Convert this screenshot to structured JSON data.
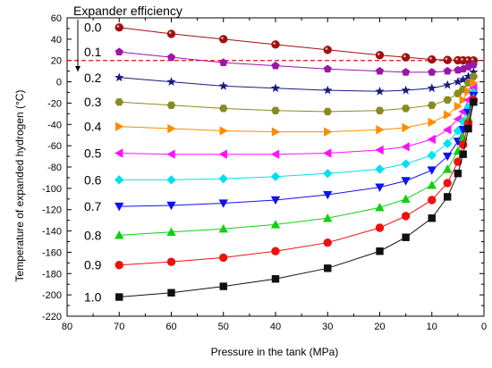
{
  "chart_data": {
    "type": "line",
    "title": "",
    "xlabel": "Pressure in the tank (MPa)",
    "ylabel": "Temperature of expanded hydrogen (°C)",
    "xlim": [
      80,
      0
    ],
    "ylim": [
      -220,
      60
    ],
    "x_ticks": [
      80,
      70,
      60,
      50,
      40,
      30,
      20,
      10,
      0
    ],
    "y_ticks": [
      60,
      40,
      20,
      0,
      -20,
      -40,
      -60,
      -80,
      -100,
      -120,
      -140,
      -160,
      -180,
      -200,
      -220
    ],
    "x_reversed": true,
    "grid": false,
    "annotation_title": "Expander efficiency",
    "reference_line": {
      "y": 20,
      "style": "dashed",
      "color": "#e01010"
    },
    "series": [
      {
        "name": "0.0",
        "marker": "sphere",
        "color": "#a01010",
        "line_color": "#a01010",
        "x": [
          70,
          60,
          50,
          40,
          30,
          20,
          15,
          10,
          7,
          5,
          4,
          3,
          2
        ],
        "y": [
          51,
          45,
          40,
          35,
          30,
          25,
          23,
          21,
          20.5,
          20.2,
          20.1,
          20,
          20
        ]
      },
      {
        "name": "0.1",
        "marker": "pentagon",
        "color": "#9b17a8",
        "line_color": "#9b17a8",
        "x": [
          70,
          60,
          50,
          40,
          30,
          20,
          15,
          10,
          7,
          5,
          4,
          3,
          2
        ],
        "y": [
          28,
          23,
          18,
          15,
          12,
          10,
          9,
          9,
          10,
          11,
          12,
          14,
          16
        ]
      },
      {
        "name": "0.2",
        "marker": "star",
        "color": "#1a1a80",
        "line_color": "#1a1a80",
        "x": [
          70,
          60,
          50,
          40,
          30,
          20,
          15,
          10,
          7,
          5,
          4,
          3,
          2
        ],
        "y": [
          4,
          0,
          -4,
          -6,
          -8,
          -9,
          -8,
          -6,
          -3,
          0,
          2,
          5,
          9
        ]
      },
      {
        "name": "0.3",
        "marker": "hexagon",
        "color": "#8a8a20",
        "line_color": "#8a8a20",
        "x": [
          70,
          60,
          50,
          40,
          30,
          20,
          15,
          10,
          7,
          5,
          4,
          3,
          2
        ],
        "y": [
          -19,
          -22,
          -25,
          -27,
          -28,
          -27,
          -25,
          -22,
          -17,
          -11,
          -7,
          -1,
          5
        ]
      },
      {
        "name": "0.4",
        "marker": "triangle-right",
        "color": "#ff8c00",
        "line_color": "#ff8c00",
        "x": [
          70,
          60,
          50,
          40,
          30,
          20,
          15,
          10,
          7,
          5,
          4,
          3,
          2
        ],
        "y": [
          -42,
          -44,
          -46,
          -47,
          -47,
          -45,
          -43,
          -38,
          -31,
          -23,
          -17,
          -9,
          -1
        ]
      },
      {
        "name": "0.5",
        "marker": "triangle-left",
        "color": "#ff10ff",
        "line_color": "#ff10ff",
        "x": [
          70,
          60,
          50,
          40,
          30,
          20,
          15,
          10,
          7,
          5,
          4,
          3,
          2
        ],
        "y": [
          -67,
          -68,
          -68,
          -68,
          -67,
          -64,
          -61,
          -54,
          -45,
          -35,
          -28,
          -17,
          -6
        ]
      },
      {
        "name": "0.6",
        "marker": "diamond",
        "color": "#00e0f0",
        "line_color": "#00e0f0",
        "x": [
          70,
          60,
          50,
          40,
          30,
          20,
          15,
          10,
          7,
          5,
          4,
          3,
          2
        ],
        "y": [
          -92,
          -92,
          -91,
          -89,
          -86,
          -82,
          -77,
          -69,
          -58,
          -46,
          -37,
          -24,
          -10
        ]
      },
      {
        "name": "0.7",
        "marker": "triangle-down",
        "color": "#1010f0",
        "line_color": "#1010f0",
        "x": [
          70,
          60,
          50,
          40,
          30,
          20,
          15,
          10,
          7,
          5,
          4,
          3,
          2
        ],
        "y": [
          -117,
          -116,
          -114,
          -111,
          -106,
          -99,
          -93,
          -83,
          -70,
          -56,
          -45,
          -29,
          -13
        ]
      },
      {
        "name": "0.8",
        "marker": "triangle-up",
        "color": "#10d010",
        "line_color": "#10d010",
        "x": [
          70,
          60,
          50,
          40,
          30,
          20,
          15,
          10,
          7,
          5,
          4,
          3,
          2
        ],
        "y": [
          -144,
          -141,
          -138,
          -134,
          -128,
          -118,
          -110,
          -97,
          -82,
          -65,
          -52,
          -34,
          -15
        ]
      },
      {
        "name": "0.9",
        "marker": "circle",
        "color": "#f01010",
        "line_color": "#f01010",
        "x": [
          70,
          60,
          50,
          40,
          30,
          20,
          15,
          10,
          7,
          5,
          4,
          3,
          2
        ],
        "y": [
          -172,
          -169,
          -165,
          -159,
          -151,
          -137,
          -126,
          -111,
          -95,
          -75,
          -59,
          -39,
          -17
        ]
      },
      {
        "name": "1.0",
        "marker": "square",
        "color": "#101010",
        "line_color": "#101010",
        "x": [
          70,
          60,
          50,
          40,
          30,
          20,
          15,
          10,
          7,
          5,
          4,
          3,
          2
        ],
        "y": [
          -202,
          -198,
          -192,
          -185,
          -175,
          -159,
          -146,
          -128,
          -108,
          -86,
          -68,
          -44,
          -19
        ]
      }
    ]
  }
}
